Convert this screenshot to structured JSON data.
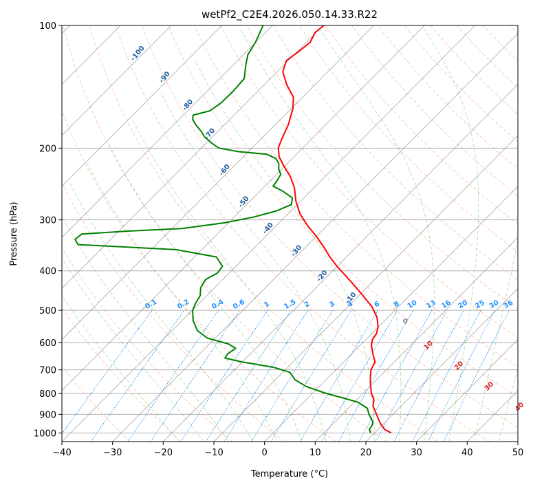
{
  "chart_data": {
    "type": "line",
    "title": "wetPf2_C2E4.2026.050.14.33.R22",
    "xlabel": "Temperature (°C)",
    "ylabel": "Pressure (hPa)",
    "xlim": [
      -40,
      50
    ],
    "ylim": [
      1050,
      100
    ],
    "y_scale": "log",
    "x_ticks": [
      "−40",
      "−30",
      "−20",
      "−10",
      "0",
      "10",
      "20",
      "30",
      "40",
      "50"
    ],
    "x_tick_values": [
      -40,
      -30,
      -20,
      -10,
      0,
      10,
      20,
      30,
      40,
      50
    ],
    "y_ticks": [
      "1000",
      "900",
      "800",
      "700",
      "600",
      "500",
      "400",
      "300",
      "200",
      "100"
    ],
    "y_tick_values": [
      1000,
      900,
      800,
      700,
      600,
      500,
      400,
      300,
      200,
      100
    ],
    "colors": {
      "temperature": "#ff0000",
      "dewpoint": "#008000",
      "dry_adiabat": "#ff7f50",
      "moist_adiabat": "#2ca02c",
      "mixing_ratio": "#1f8ff0",
      "isotherm": "#555555",
      "dry_label": "#1f5f9f",
      "moist_label": "#d62728",
      "mixing_label": "#1e90ff"
    },
    "series": [
      {
        "key": "temperature",
        "values": [
          [
            25.0,
            1000
          ],
          [
            23.7,
            980
          ],
          [
            22.9,
            950
          ],
          [
            22.4,
            920
          ],
          [
            22.1,
            900
          ],
          [
            21.4,
            860
          ],
          [
            21.6,
            830
          ],
          [
            21.1,
            800
          ],
          [
            20.9,
            760
          ],
          [
            20.9,
            730
          ],
          [
            21.0,
            700
          ],
          [
            21.8,
            670
          ],
          [
            21.4,
            640
          ],
          [
            21.1,
            610
          ],
          [
            21.3,
            590
          ],
          [
            22.1,
            570
          ],
          [
            22.4,
            550
          ],
          [
            22.2,
            520
          ],
          [
            21.2,
            490
          ],
          [
            19.4,
            460
          ],
          [
            17.4,
            430
          ],
          [
            15.9,
            410
          ],
          [
            14.3,
            390
          ],
          [
            12.9,
            370
          ],
          [
            11.7,
            350
          ],
          [
            10.3,
            330
          ],
          [
            8.5,
            310
          ],
          [
            7.0,
            290
          ],
          [
            6.2,
            270
          ],
          [
            5.9,
            250
          ],
          [
            5.1,
            235
          ],
          [
            3.7,
            220
          ],
          [
            2.9,
            210
          ],
          [
            2.7,
            200
          ],
          [
            3.4,
            190
          ],
          [
            4.7,
            175
          ],
          [
            5.6,
            160
          ],
          [
            5.7,
            150
          ],
          [
            4.4,
            140
          ],
          [
            3.6,
            130
          ],
          [
            4.3,
            122
          ],
          [
            6.7,
            116
          ],
          [
            9.0,
            110
          ],
          [
            10.0,
            104
          ],
          [
            11.7,
            100
          ]
        ]
      },
      {
        "key": "dewpoint",
        "values": [
          [
            20.9,
            1000
          ],
          [
            20.7,
            980
          ],
          [
            21.2,
            960
          ],
          [
            21.4,
            940
          ],
          [
            20.6,
            900
          ],
          [
            20.3,
            870
          ],
          [
            18.4,
            840
          ],
          [
            15.4,
            820
          ],
          [
            12.2,
            800
          ],
          [
            8.3,
            770
          ],
          [
            6.0,
            740
          ],
          [
            5.0,
            710
          ],
          [
            1.8,
            690
          ],
          [
            -4.3,
            670
          ],
          [
            -7.8,
            655
          ],
          [
            -7.3,
            640
          ],
          [
            -5.7,
            620
          ],
          [
            -7.1,
            605
          ],
          [
            -11.3,
            585
          ],
          [
            -13.3,
            560
          ],
          [
            -14.1,
            530
          ],
          [
            -14.2,
            500
          ],
          [
            -13.6,
            480
          ],
          [
            -12.7,
            460
          ],
          [
            -12.6,
            440
          ],
          [
            -11.6,
            420
          ],
          [
            -9.3,
            405
          ],
          [
            -8.3,
            390
          ],
          [
            -9.5,
            370
          ],
          [
            -17.4,
            355
          ],
          [
            -36.8,
            345
          ],
          [
            -37.4,
            335
          ],
          [
            -36.1,
            325
          ],
          [
            -27.6,
            320
          ],
          [
            -16.3,
            315
          ],
          [
            -7.9,
            305
          ],
          [
            -2.0,
            295
          ],
          [
            2.4,
            285
          ],
          [
            5.3,
            275
          ],
          [
            5.5,
            265
          ],
          [
            3.6,
            255
          ],
          [
            1.7,
            248
          ],
          [
            2.5,
            240
          ],
          [
            3.2,
            232
          ],
          [
            2.8,
            225
          ],
          [
            2.8,
            218
          ],
          [
            2.2,
            212
          ],
          [
            0.4,
            207
          ],
          [
            -5.2,
            204
          ],
          [
            -9.0,
            200
          ],
          [
            -10.3,
            195
          ],
          [
            -11.8,
            188
          ],
          [
            -12.5,
            182
          ],
          [
            -13.6,
            175
          ],
          [
            -14.2,
            170
          ],
          [
            -14.1,
            166
          ],
          [
            -10.8,
            162
          ],
          [
            -8.6,
            155
          ],
          [
            -6.2,
            145
          ],
          [
            -4.0,
            135
          ],
          [
            -3.7,
            125
          ],
          [
            -3.3,
            118
          ],
          [
            -1.8,
            110
          ],
          [
            -0.9,
            104
          ],
          [
            -0.3,
            100
          ]
        ]
      }
    ],
    "background_labels": {
      "dry_adiabats": [
        "-100",
        "-90",
        "-80",
        "-70",
        "-60",
        "-50",
        "-40",
        "-30",
        "-20",
        "-10"
      ],
      "dry_adiabat_values": [
        -100,
        -90,
        -80,
        -70,
        -60,
        -50,
        -40,
        -30,
        -20,
        -10
      ],
      "zero_label": "0",
      "moist_adiabats": [
        "10",
        "20",
        "30",
        "40"
      ],
      "moist_adiabat_values": [
        10,
        20,
        30,
        40
      ],
      "mixing_ratios": [
        "0.1",
        "0.2",
        "0.4",
        "0.6",
        "1",
        "1.5",
        "2",
        "3",
        "4",
        "6",
        "8",
        "10",
        "13",
        "16",
        "20",
        "25",
        "30",
        "36"
      ],
      "mixing_ratio_values": [
        0.1,
        0.2,
        0.4,
        0.6,
        1,
        1.5,
        2,
        3,
        4,
        6,
        8,
        10,
        13,
        16,
        20,
        25,
        30,
        36
      ]
    },
    "grid": true
  }
}
